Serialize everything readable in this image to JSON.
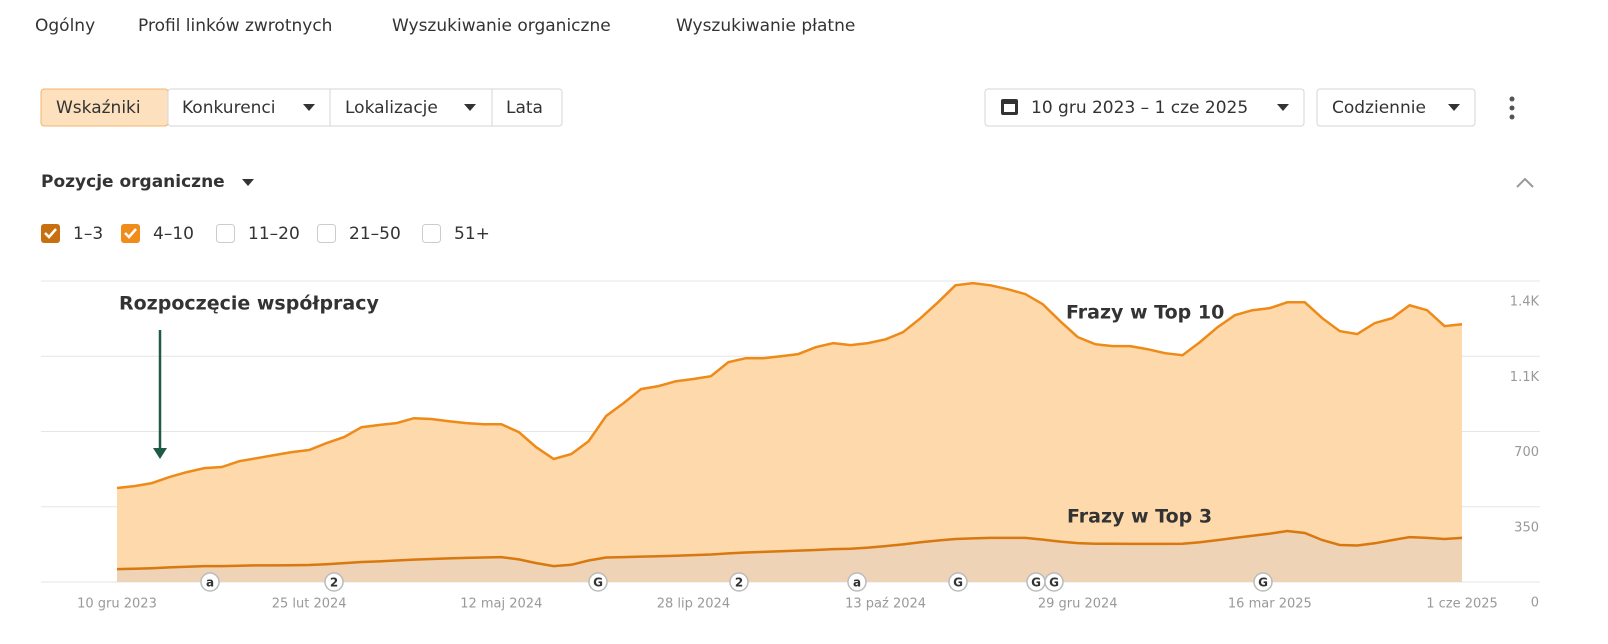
{
  "tabs": [
    "Ogólny",
    "Profil linków zwrotnych",
    "Wyszukiwanie organiczne",
    "Wyszukiwanie płatne"
  ],
  "toolbar": {
    "filters": [
      "Wskaźniki",
      "Konkurenci",
      "Lokalizacje",
      "Lata"
    ],
    "date_range": "10 gru 2023 – 1 cze 2025",
    "interval": "Codziennie"
  },
  "section_title": "Pozycje organiczne",
  "position_filters": [
    {
      "label": "1–3",
      "checked": true,
      "color": "#c8700f"
    },
    {
      "label": "4–10",
      "checked": true,
      "color": "#f08c1a"
    },
    {
      "label": "11–20",
      "checked": false,
      "color": "#cccccc"
    },
    {
      "label": "21–50",
      "checked": false,
      "color": "#cccccc"
    },
    {
      "label": "51+",
      "checked": false,
      "color": "#cccccc"
    }
  ],
  "chart_data": {
    "type": "area",
    "categories": [
      "10 gru 2023",
      null,
      null,
      null,
      null,
      null,
      null,
      null,
      null,
      null,
      null,
      "25 lut 2024",
      null,
      null,
      null,
      null,
      null,
      null,
      null,
      null,
      null,
      null,
      "12 maj 2024",
      null,
      null,
      null,
      null,
      null,
      null,
      null,
      null,
      null,
      null,
      "28 lip 2024",
      null,
      null,
      null,
      null,
      null,
      null,
      null,
      null,
      null,
      null,
      "13 paź 2024",
      null,
      null,
      null,
      null,
      null,
      null,
      null,
      null,
      null,
      null,
      "29 gru 2024",
      null,
      null,
      null,
      null,
      null,
      null,
      null,
      null,
      null,
      null,
      "16 mar 2025",
      null,
      null,
      null,
      null,
      null,
      null,
      null,
      null,
      null,
      null,
      "1 cze 2025"
    ],
    "series": [
      {
        "name": "Frazy w Top 10",
        "color": "#ee8a18",
        "fill": "#fdd9ac",
        "label_color": "#6b1d3d",
        "values": [
          437,
          446,
          460,
          488,
          511,
          530,
          535,
          562,
          576,
          590,
          604,
          614,
          646,
          674,
          720,
          730,
          739,
          762,
          758,
          748,
          739,
          734,
          734,
          697,
          627,
          572,
          595,
          655,
          772,
          832,
          897,
          911,
          934,
          944,
          957,
          1023,
          1041,
          1041,
          1050,
          1060,
          1092,
          1111,
          1102,
          1111,
          1129,
          1162,
          1227,
          1301,
          1380,
          1390,
          1380,
          1362,
          1339,
          1292,
          1213,
          1139,
          1106,
          1097,
          1097,
          1083,
          1064,
          1055,
          1116,
          1185,
          1241,
          1264,
          1274,
          1301,
          1301,
          1227,
          1167,
          1153,
          1204,
          1227,
          1287,
          1264,
          1190,
          1199
        ]
      },
      {
        "name": "Frazy w Top 3",
        "color": "#d8780f",
        "fill": "#efd3b6",
        "label_color": "#6b1d3d",
        "values": [
          60,
          62,
          64,
          68,
          71,
          74,
          74,
          76,
          77,
          77,
          78,
          79,
          83,
          88,
          93,
          96,
          100,
          104,
          107,
          110,
          112,
          114,
          116,
          105,
          88,
          74,
          80,
          100,
          114,
          116,
          118,
          120,
          122,
          125,
          128,
          133,
          137,
          140,
          143,
          146,
          149,
          153,
          155,
          160,
          167,
          175,
          185,
          193,
          200,
          203,
          205,
          205,
          205,
          197,
          188,
          181,
          178,
          178,
          177,
          177,
          177,
          178,
          185,
          195,
          205,
          215,
          225,
          237,
          228,
          195,
          172,
          170,
          180,
          195,
          209,
          205,
          200,
          205
        ]
      }
    ],
    "ylim": [
      0,
      1400
    ],
    "yticks": [
      0,
      350,
      700,
      {
        "value": 1050,
        "label": "1.1K"
      },
      {
        "value": 1400,
        "label": "1.4K"
      }
    ],
    "grid": true,
    "annotations": [
      "Rozpoczęcie współpracy"
    ],
    "events": [
      "a",
      "2",
      "G",
      "2",
      "a",
      "G",
      "G",
      "G",
      "G"
    ]
  }
}
